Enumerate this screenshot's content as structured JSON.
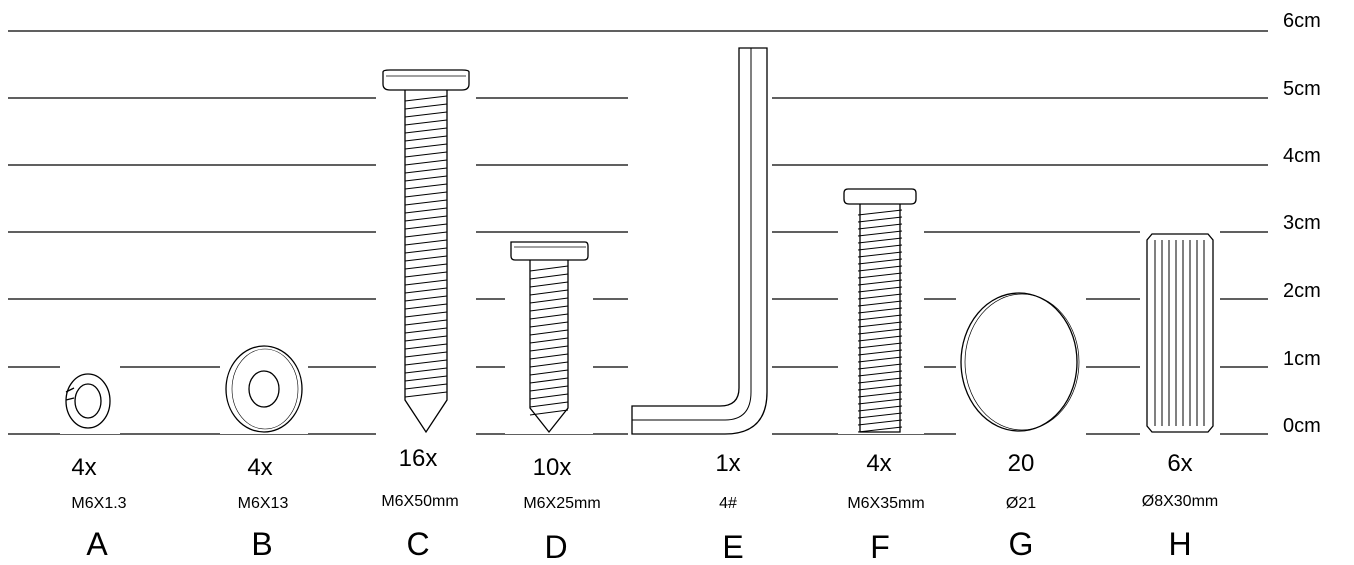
{
  "scale": {
    "unit_labels": [
      "0cm",
      "1cm",
      "2cm",
      "3cm",
      "4cm",
      "5cm",
      "6cm"
    ]
  },
  "parts": [
    {
      "letter": "A",
      "quantity": "4x",
      "spec": "M6X1.3",
      "item_icon": "spring-washer-icon"
    },
    {
      "letter": "B",
      "quantity": "4x",
      "spec": "M6X13",
      "item_icon": "flat-washer-icon"
    },
    {
      "letter": "C",
      "quantity": "16x",
      "spec": "M6X50mm",
      "item_icon": "wood-screw-long-icon"
    },
    {
      "letter": "D",
      "quantity": "10x",
      "spec": "M6X25mm",
      "item_icon": "wood-screw-short-icon"
    },
    {
      "letter": "E",
      "quantity": "1x",
      "spec": "4#",
      "item_icon": "allen-key-icon"
    },
    {
      "letter": "F",
      "quantity": "4x",
      "spec": "M6X35mm",
      "item_icon": "machine-bolt-icon"
    },
    {
      "letter": "G",
      "quantity": "20",
      "spec": "Ø21",
      "item_icon": "cover-cap-icon"
    },
    {
      "letter": "H",
      "quantity": "6x",
      "spec": "Ø8X30mm",
      "item_icon": "wooden-dowel-icon"
    }
  ]
}
